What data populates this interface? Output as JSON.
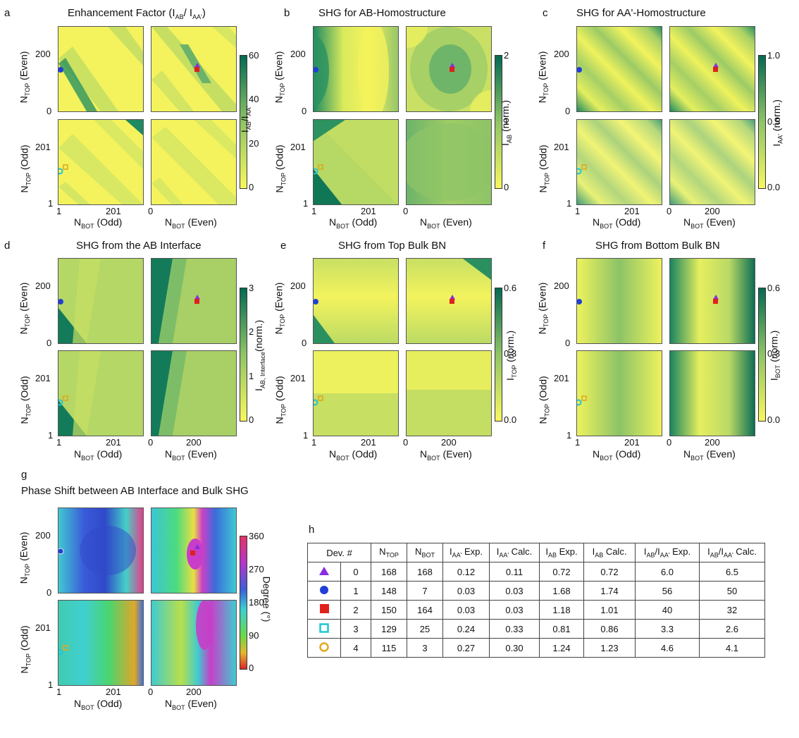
{
  "panels": {
    "a": {
      "letter": "a",
      "title": "Enhancement Factor (I",
      "title_sub1": "AB",
      "title_mid": "/ I",
      "title_sub2": "AA'",
      "title_end": ")",
      "cbar_ticks": [
        "60",
        "40",
        "20",
        "0"
      ],
      "cbar_label": "I",
      "cbar_sub": "AB",
      "cbar_label2": "/I",
      "cbar_sub2": "AA'"
    },
    "b": {
      "letter": "b",
      "title": "SHG for AB-Homostructure",
      "cbar_ticks": [
        "2",
        "1",
        "0"
      ],
      "cbar_label": "I",
      "cbar_sub": "AB",
      "cbar_label2": " (norm.)"
    },
    "c": {
      "letter": "c",
      "title": "SHG for AA'-Homostructure",
      "cbar_ticks": [
        "1.0",
        "0.5",
        "0.0"
      ],
      "cbar_label": "I",
      "cbar_sub": "AA'",
      "cbar_label2": " (norm.)"
    },
    "d": {
      "letter": "d",
      "title": "SHG from the AB Interface",
      "cbar_ticks": [
        "3",
        "2",
        "1",
        "0"
      ],
      "cbar_label": "I",
      "cbar_sub": "AB, Interface",
      "cbar_label2": "(norm.)"
    },
    "e": {
      "letter": "e",
      "title": "SHG from Top Bulk BN",
      "cbar_ticks": [
        "0.6",
        "0.3",
        "0.0"
      ],
      "cbar_label": "I",
      "cbar_sub": "TOP",
      "cbar_label2": " (norm.)"
    },
    "f": {
      "letter": "f",
      "title": "SHG from Bottom Bulk BN",
      "cbar_ticks": [
        "0.6",
        "0.3",
        "0.0"
      ],
      "cbar_label": "I",
      "cbar_sub": "BOT",
      "cbar_label2": " (norm.)"
    },
    "g": {
      "letter": "g",
      "title": "Phase Shift between AB Interface and Bulk SHG",
      "cbar_ticks": [
        "360",
        "270",
        "180",
        "90",
        "0"
      ],
      "cbar_label": "Degree (°)"
    }
  },
  "axes": {
    "y_even_label": "N",
    "y_even_sub": "TOP",
    "y_even_end": " (Even)",
    "y_odd_label": "N",
    "y_odd_sub": "TOP",
    "y_odd_end": " (Odd)",
    "x_odd_label": "N",
    "x_odd_sub": "BOT",
    "x_odd_end": " (Odd)",
    "x_even_label": "N",
    "x_even_sub": "BOT",
    "x_even_end": " (Even)",
    "y_even_ticks": [
      "200",
      "0"
    ],
    "y_odd_ticks": [
      "201",
      "1"
    ],
    "x_odd_ticks": [
      "1",
      "201"
    ],
    "x_even_ticks": [
      "0",
      "200"
    ]
  },
  "table": {
    "letter": "h",
    "headers": [
      {
        "t": "Dev. #"
      },
      {
        "t": "N",
        "s": "TOP"
      },
      {
        "t": "N",
        "s": "BOT"
      },
      {
        "t": "I",
        "s": "AA'",
        "e": " Exp."
      },
      {
        "t": "I",
        "s": "AA'",
        "e": " Calc."
      },
      {
        "t": "I",
        "s": "AB",
        "e": " Exp."
      },
      {
        "t": "I",
        "s": "AB",
        "e": " Calc."
      },
      {
        "t": "I",
        "s": "AB",
        "e": "/I",
        "s2": "AA'",
        "e2": " Exp."
      },
      {
        "t": "I",
        "s": "AB",
        "e": "/I",
        "s2": "AA'",
        "e2": " Calc."
      }
    ],
    "rows": [
      {
        "marker": "purple-triangle",
        "color": "#8a2be2",
        "dev": "0",
        "ntop": "168",
        "nbot": "168",
        "iaa_exp": "0.12",
        "iaa_calc": "0.11",
        "iab_exp": "0.72",
        "iab_calc": "0.72",
        "ratio_exp": "6.0",
        "ratio_calc": "6.5"
      },
      {
        "marker": "blue-circle",
        "color": "#1f3fd6",
        "dev": "1",
        "ntop": "148",
        "nbot": "7",
        "iaa_exp": "0.03",
        "iaa_calc": "0.03",
        "iab_exp": "1.68",
        "iab_calc": "1.74",
        "ratio_exp": "56",
        "ratio_calc": "50"
      },
      {
        "marker": "red-square",
        "color": "#e0201c",
        "dev": "2",
        "ntop": "150",
        "nbot": "164",
        "iaa_exp": "0.03",
        "iaa_calc": "0.03",
        "iab_exp": "1.18",
        "iab_calc": "1.01",
        "ratio_exp": "40",
        "ratio_calc": "32"
      },
      {
        "marker": "cyan-square",
        "color": "#1fc6d6",
        "dev": "3",
        "ntop": "129",
        "nbot": "25",
        "iaa_exp": "0.24",
        "iaa_calc": "0.33",
        "iab_exp": "0.81",
        "iab_calc": "0.86",
        "ratio_exp": "3.3",
        "ratio_calc": "2.6"
      },
      {
        "marker": "yellow-circle",
        "color": "#e0a81c",
        "dev": "4",
        "ntop": "115",
        "nbot": "3",
        "iaa_exp": "0.27",
        "iaa_calc": "0.30",
        "iab_exp": "1.24",
        "iab_calc": "1.23",
        "ratio_exp": "4.6",
        "ratio_calc": "4.1"
      }
    ]
  },
  "colors": {
    "yellow": "#f5f55e",
    "green_dark": "#0b6e54",
    "green_mid": "#7fb86a"
  }
}
